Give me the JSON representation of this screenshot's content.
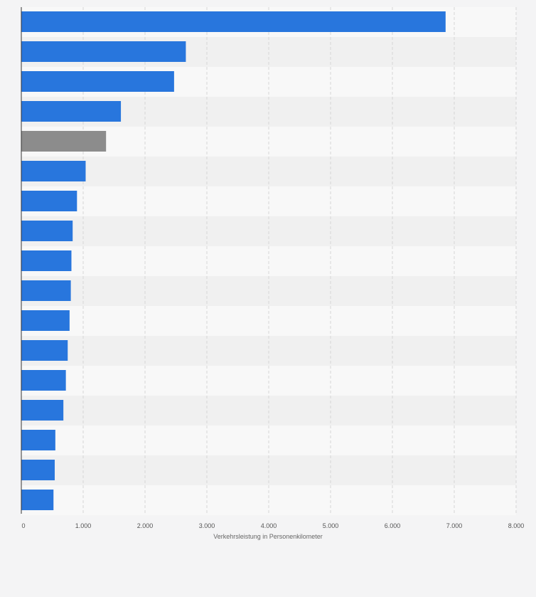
{
  "chart_data": {
    "type": "bar",
    "orientation": "horizontal",
    "title": "",
    "xlabel": "Verkehrsleistung in Personenkilometer",
    "ylabel": "",
    "xlim": [
      0,
      8000
    ],
    "xticks": [
      0,
      1000,
      2000,
      3000,
      4000,
      5000,
      6000,
      7000,
      8000
    ],
    "xtick_labels": [
      "0",
      "1.000",
      "2.000",
      "3.000",
      "4.000",
      "5.000",
      "6.000",
      "7.000",
      "8.000"
    ],
    "categories": [
      "",
      "",
      "",
      "",
      "",
      "",
      "",
      "",
      "",
      "",
      "",
      "",
      "",
      "",
      "",
      "",
      ""
    ],
    "values": [
      6860,
      2660,
      2470,
      1610,
      1370,
      1040,
      900,
      830,
      810,
      800,
      780,
      750,
      720,
      680,
      550,
      540,
      520
    ],
    "highlight_index": 4,
    "colors": {
      "bar": "#2876dd",
      "highlight": "#8c8c8c",
      "band_light": "#f8f8f8",
      "band_dark": "#f0f0f0",
      "grid": "#d6d6d6",
      "axis": "#333333",
      "background": "#f4f4f5"
    }
  }
}
